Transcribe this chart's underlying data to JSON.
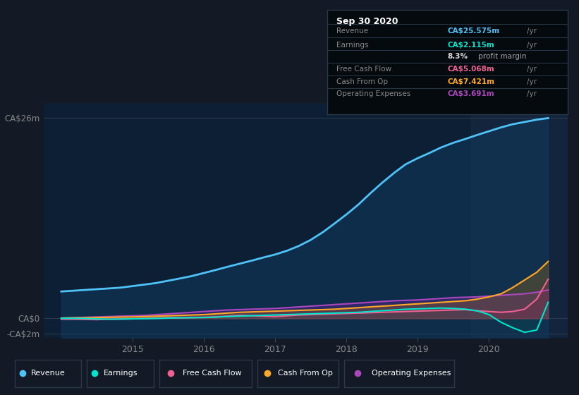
{
  "bg_color": "#131a25",
  "chart_bg": "#0d1f35",
  "legend_bg": "#1a2535",
  "ylim": [
    -2.5,
    28
  ],
  "xlim": [
    2013.75,
    2021.1
  ],
  "ytick_vals": [
    -2,
    0,
    26
  ],
  "ytick_labels": [
    "-CA$2m",
    "CA$0",
    "CA$26m"
  ],
  "xtick_years": [
    2015,
    2016,
    2017,
    2018,
    2019,
    2020
  ],
  "legend": [
    {
      "label": "Revenue",
      "color": "#4fc3f7"
    },
    {
      "label": "Earnings",
      "color": "#00e5cc"
    },
    {
      "label": "Free Cash Flow",
      "color": "#f06292"
    },
    {
      "label": "Cash From Op",
      "color": "#ffa726"
    },
    {
      "label": "Operating Expenses",
      "color": "#ab47bc"
    }
  ],
  "series": {
    "x": [
      2014.0,
      2014.17,
      2014.33,
      2014.5,
      2014.67,
      2014.83,
      2015.0,
      2015.17,
      2015.33,
      2015.5,
      2015.67,
      2015.83,
      2016.0,
      2016.17,
      2016.33,
      2016.5,
      2016.67,
      2016.83,
      2017.0,
      2017.17,
      2017.33,
      2017.5,
      2017.67,
      2017.83,
      2018.0,
      2018.17,
      2018.33,
      2018.5,
      2018.67,
      2018.83,
      2019.0,
      2019.17,
      2019.33,
      2019.5,
      2019.67,
      2019.83,
      2020.0,
      2020.17,
      2020.33,
      2020.5,
      2020.67,
      2020.83
    ],
    "revenue": [
      3.5,
      3.6,
      3.7,
      3.8,
      3.9,
      4.0,
      4.2,
      4.4,
      4.6,
      4.9,
      5.2,
      5.5,
      5.9,
      6.3,
      6.7,
      7.1,
      7.5,
      7.9,
      8.3,
      8.8,
      9.4,
      10.2,
      11.2,
      12.3,
      13.5,
      14.8,
      16.2,
      17.6,
      18.9,
      20.0,
      20.8,
      21.5,
      22.2,
      22.8,
      23.3,
      23.8,
      24.3,
      24.8,
      25.2,
      25.5,
      25.8,
      26.0
    ],
    "earnings": [
      0.02,
      0.02,
      0.0,
      -0.05,
      -0.1,
      -0.08,
      -0.05,
      -0.02,
      0.0,
      0.05,
      0.08,
      0.1,
      0.12,
      0.18,
      0.25,
      0.3,
      0.35,
      0.4,
      0.45,
      0.5,
      0.55,
      0.6,
      0.65,
      0.7,
      0.75,
      0.8,
      0.9,
      1.0,
      1.1,
      1.2,
      1.25,
      1.3,
      1.35,
      1.3,
      1.2,
      1.0,
      0.5,
      -0.5,
      -1.2,
      -1.8,
      -1.5,
      2.1
    ],
    "fcf": [
      -0.1,
      -0.1,
      -0.12,
      -0.15,
      -0.1,
      -0.08,
      -0.05,
      0.0,
      0.05,
      0.1,
      0.08,
      0.12,
      0.15,
      0.2,
      0.3,
      0.4,
      0.35,
      0.3,
      0.25,
      0.35,
      0.45,
      0.5,
      0.55,
      0.6,
      0.65,
      0.7,
      0.75,
      0.8,
      0.85,
      0.9,
      0.95,
      1.0,
      1.05,
      1.1,
      1.15,
      1.0,
      0.9,
      0.8,
      0.9,
      1.2,
      2.5,
      5.1
    ],
    "cashfromop": [
      0.05,
      0.08,
      0.1,
      0.12,
      0.15,
      0.18,
      0.2,
      0.25,
      0.3,
      0.35,
      0.4,
      0.45,
      0.5,
      0.6,
      0.7,
      0.8,
      0.85,
      0.9,
      0.95,
      1.0,
      1.05,
      1.1,
      1.15,
      1.2,
      1.3,
      1.4,
      1.5,
      1.6,
      1.7,
      1.8,
      1.9,
      2.0,
      2.1,
      2.2,
      2.3,
      2.5,
      2.8,
      3.2,
      4.0,
      5.0,
      6.0,
      7.4
    ],
    "opex": [
      0.05,
      0.1,
      0.15,
      0.2,
      0.25,
      0.3,
      0.35,
      0.4,
      0.5,
      0.6,
      0.7,
      0.8,
      0.9,
      1.0,
      1.1,
      1.15,
      1.2,
      1.25,
      1.3,
      1.4,
      1.5,
      1.6,
      1.7,
      1.8,
      1.9,
      2.0,
      2.1,
      2.2,
      2.3,
      2.35,
      2.4,
      2.5,
      2.6,
      2.7,
      2.75,
      2.8,
      2.9,
      3.0,
      3.1,
      3.2,
      3.4,
      3.7
    ]
  },
  "infobox": {
    "title": "Sep 30 2020",
    "title_color": "#ffffff",
    "bg": "#050a0f",
    "border": "#2a3a4a",
    "rows": [
      {
        "label": "Revenue",
        "value": "CA$25.575m",
        "unit": "/yr",
        "val_color": "#4fc3f7"
      },
      {
        "label": "Earnings",
        "value": "CA$2.115m",
        "unit": "/yr",
        "val_color": "#00e5cc"
      },
      {
        "label": "",
        "value": "8.3%",
        "unit": " profit margin",
        "val_color": "#dddddd",
        "is_margin": true
      },
      {
        "label": "Free Cash Flow",
        "value": "CA$5.068m",
        "unit": "/yr",
        "val_color": "#f06292"
      },
      {
        "label": "Cash From Op",
        "value": "CA$7.421m",
        "unit": "/yr",
        "val_color": "#ffa726"
      },
      {
        "label": "Operating Expenses",
        "value": "CA$3.691m",
        "unit": "/yr",
        "val_color": "#ab47bc"
      }
    ]
  }
}
